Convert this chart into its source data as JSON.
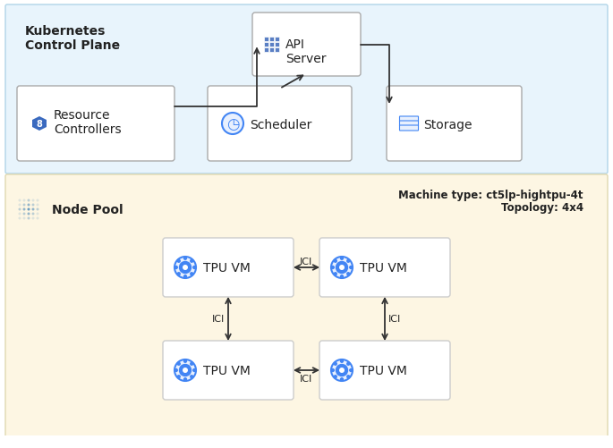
{
  "bg_top": "#e8f4fc",
  "bg_bottom": "#fdf6e3",
  "k8s_label": "Kubernetes\nControl Plane",
  "node_pool_label": "Node Pool",
  "machine_type_label": "Machine type: ct5lp-hightpu-4t",
  "topology_label": "Topology: 4x4",
  "api_server_label": "API\nServer",
  "resource_ctrl_label": "Resource\nControllers",
  "scheduler_label": "Scheduler",
  "storage_label": "Storage",
  "tpu_vm_label": "TPU VM",
  "ici_label": "ICI",
  "box_fill": "#ffffff",
  "box_edge": "#cccccc",
  "arrow_color": "#333333",
  "tpu_icon_color": "#4285f4",
  "text_color": "#222222",
  "label_fontsize": 10,
  "title_fontsize": 11,
  "small_fontsize": 8.5
}
